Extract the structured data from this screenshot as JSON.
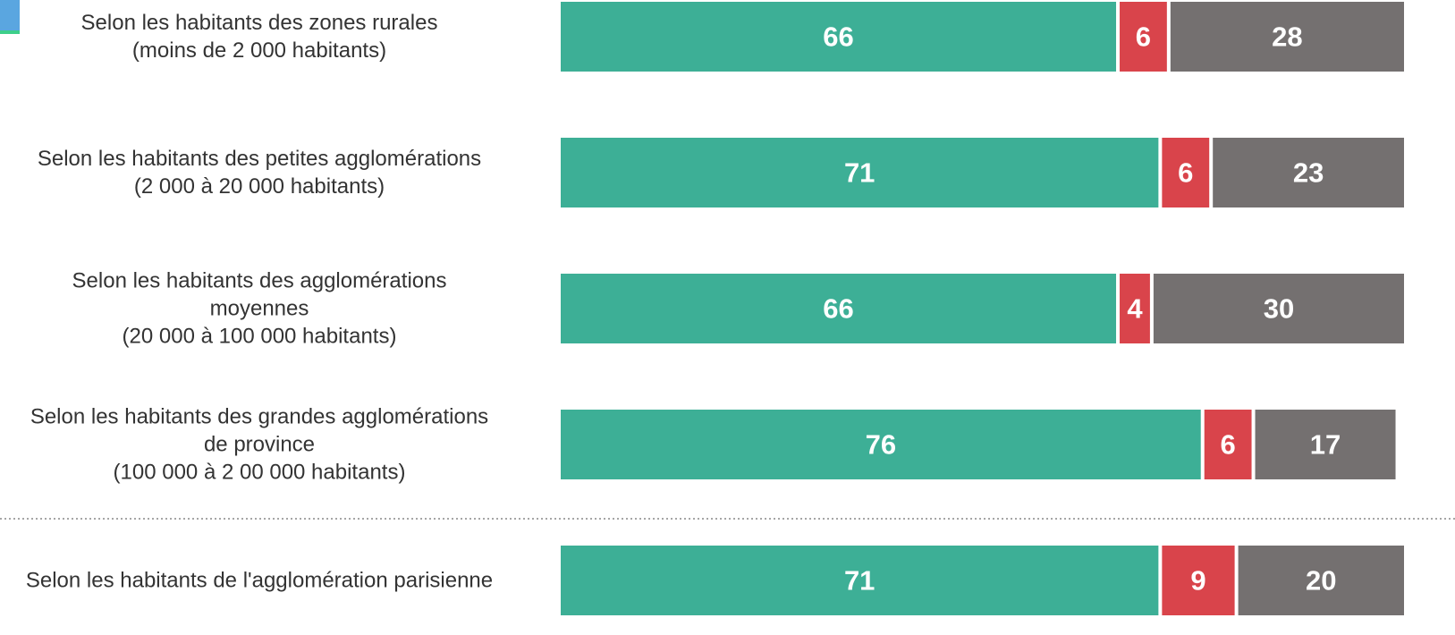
{
  "chart_data": {
    "type": "stacked_bar_horizontal",
    "categories": [
      "Selon les habitants des zones rurales\n(moins de 2 000 habitants)",
      "Selon les habitants des petites agglomérations\n(2 000 à 20 000 habitants)",
      "Selon les habitants des agglomérations\nmoyennes\n(20 000 à 100 000 habitants)",
      "Selon les habitants des grandes agglomérations\nde province\n(100 000 à 2 00 000 habitants)",
      "Selon les habitants de l'agglomération parisienne"
    ],
    "series": [
      {
        "color": "#3daf96",
        "values": [
          66,
          71,
          66,
          76,
          71
        ]
      },
      {
        "color": "#d9444b",
        "values": [
          6,
          6,
          4,
          6,
          9
        ]
      },
      {
        "color": "#747070",
        "values": [
          28,
          23,
          30,
          17,
          20
        ]
      }
    ],
    "xlim": [
      0,
      100
    ]
  }
}
